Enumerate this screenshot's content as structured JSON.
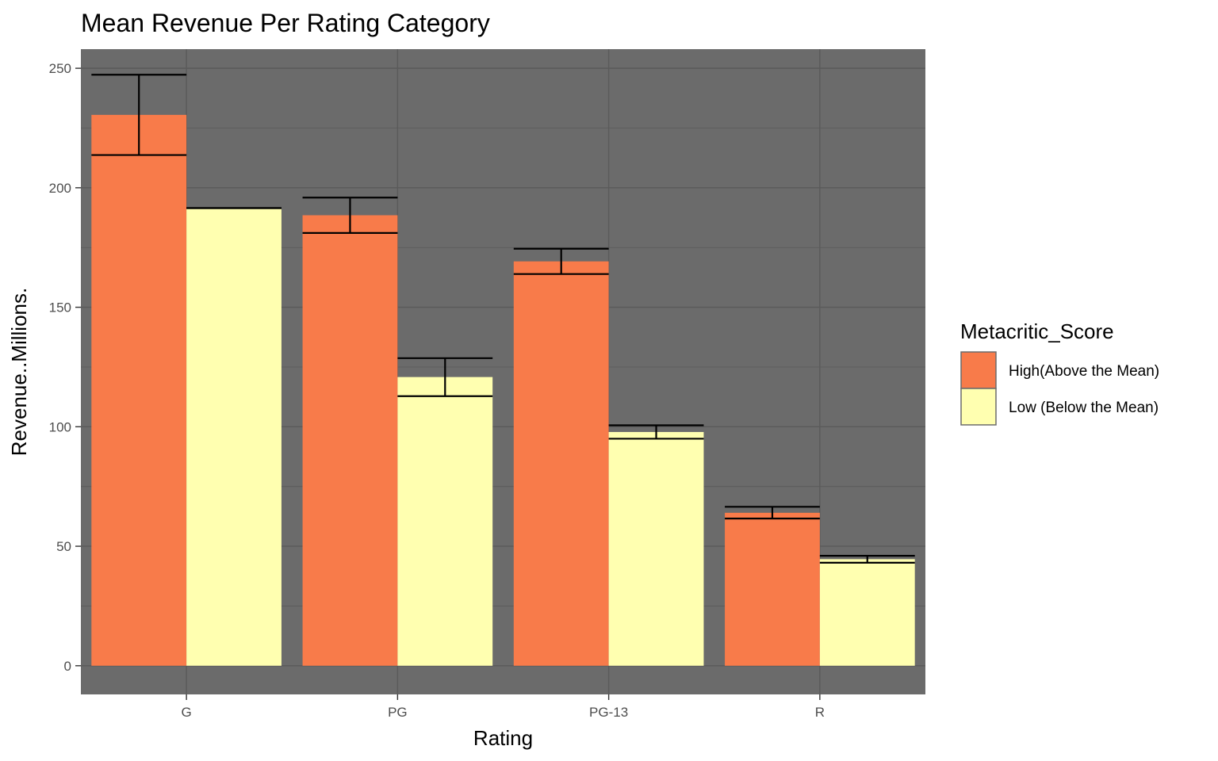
{
  "chart_data": {
    "type": "bar",
    "title": "Mean Revenue Per Rating Category",
    "xlabel": "Rating",
    "ylabel": "Revenue..Millions.",
    "categories": [
      "G",
      "PG",
      "PG-13",
      "R"
    ],
    "ylim": [
      -12,
      258
    ],
    "yticks": [
      0,
      50,
      100,
      150,
      200,
      250
    ],
    "ytick_labels": [
      "0",
      "50",
      "100",
      "150",
      "200",
      "250"
    ],
    "grid": true,
    "panel_background": "#6b6b6b",
    "grid_color": "#5a5a5a",
    "legend": {
      "title": "Metacritic_Score",
      "position": "right"
    },
    "series": [
      {
        "name": "High(Above the Mean)",
        "color": "#f87b4a",
        "values": [
          230.5,
          188.5,
          169.2,
          64.0
        ],
        "error_low": [
          213.7,
          181.1,
          163.9,
          61.6
        ],
        "error_high": [
          247.3,
          195.9,
          174.5,
          66.5
        ]
      },
      {
        "name": "Low (Below the Mean)",
        "color": "#ffffb0",
        "values": [
          191.5,
          120.8,
          97.8,
          44.6
        ],
        "error_low": [
          191.5,
          112.8,
          95.0,
          43.1
        ],
        "error_high": [
          191.5,
          128.7,
          100.6,
          46.0
        ]
      }
    ]
  }
}
